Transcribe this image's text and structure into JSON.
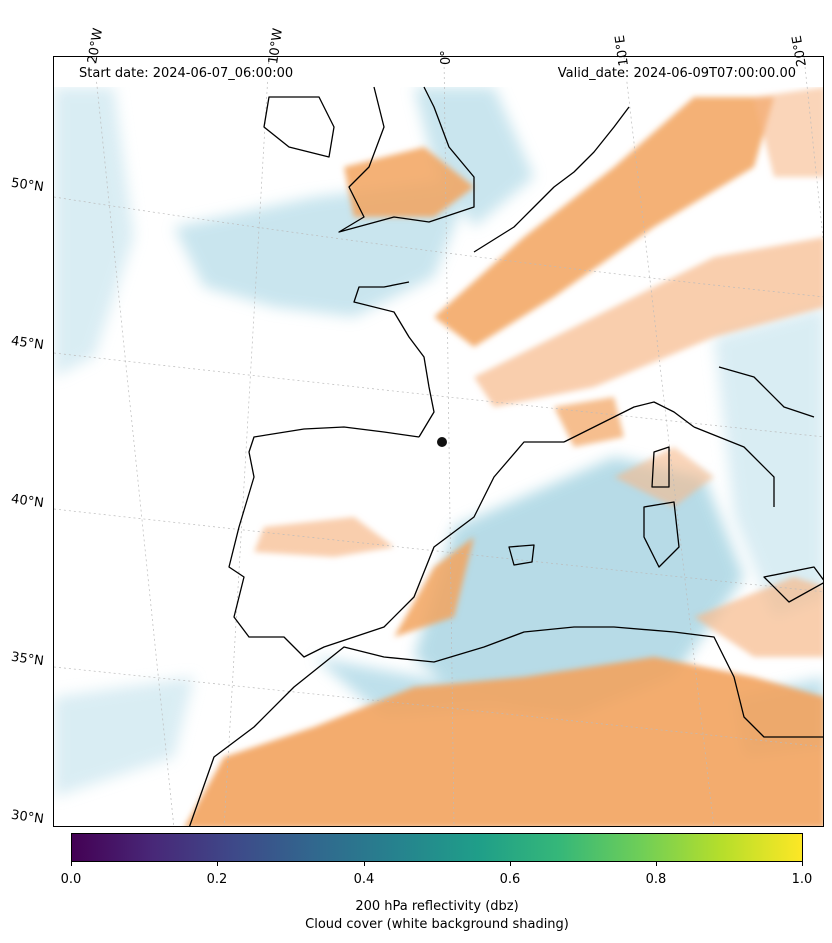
{
  "header": {
    "start_date": "Start date: 2024-06-07_06:00:00",
    "valid_date": "Valid_date: 2024-06-09T07:00:00.00"
  },
  "longitude_labels": [
    "20°W",
    "10°W",
    "0°",
    "10°E",
    "20°E"
  ],
  "latitude_labels": [
    "50°N",
    "45°N",
    "40°N",
    "35°N",
    "30°N"
  ],
  "colorbar": {
    "colormap": "viridis",
    "range": [
      0.0,
      1.0
    ],
    "ticks": [
      "0.0",
      "0.2",
      "0.4",
      "0.6",
      "0.8",
      "1.0"
    ],
    "label_line1": "200 hPa reflectivity (dbz)",
    "label_line2": "Cloud cover (white background shading)"
  },
  "colors": {
    "coastline": "#000000",
    "reflectivity_fill": "#f2a35e",
    "cloud_fill": "#a9d6e5",
    "gridline": "#bbbbbb"
  }
}
